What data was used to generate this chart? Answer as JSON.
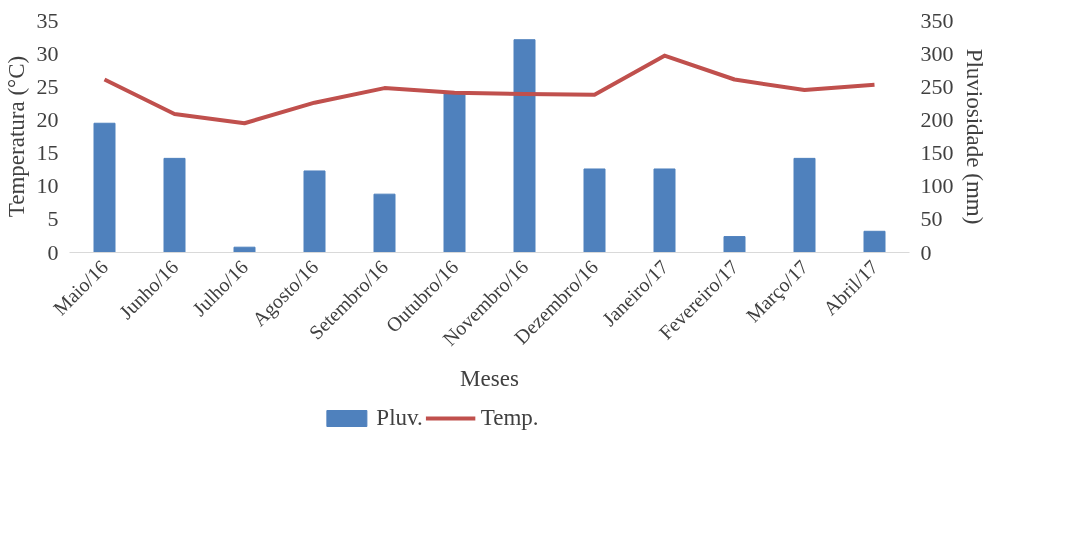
{
  "chart_data": {
    "type": "bar",
    "xlabel": "Meses",
    "ylabel": "Temperatura (°C)",
    "y2label": "Pluviosidade (mm)",
    "categories": [
      "Maio/16",
      "Junho/16",
      "Julho/16",
      "Agosto/16",
      "Setembro/16",
      "Outubro/16",
      "Novembro/16",
      "Dezembro/16",
      "Janeiro/17",
      "Fevereiro/17",
      "Março/17",
      "Abril/17"
    ],
    "series": [
      {
        "name": "Pluv.",
        "axis": "y2",
        "color": "#4f81bd",
        "values": [
          195,
          142,
          8,
          123,
          88,
          242,
          321,
          126,
          126,
          24,
          142,
          32
        ]
      },
      {
        "name": "Temp.",
        "type": "line",
        "color": "#c0504d",
        "values": [
          26.1,
          20.9,
          19.5,
          22.6,
          24.8,
          24.1,
          23.9,
          23.8,
          29.7,
          26.1,
          24.5,
          25.3
        ]
      }
    ],
    "ylim": [
      0,
      35
    ],
    "yticks": [
      0,
      5,
      10,
      15,
      20,
      25,
      30,
      35
    ],
    "y2lim": [
      0,
      350
    ],
    "y2ticks": [
      0,
      50,
      100,
      150,
      200,
      250,
      300,
      350
    ],
    "grid": false,
    "legend": "bottom"
  }
}
